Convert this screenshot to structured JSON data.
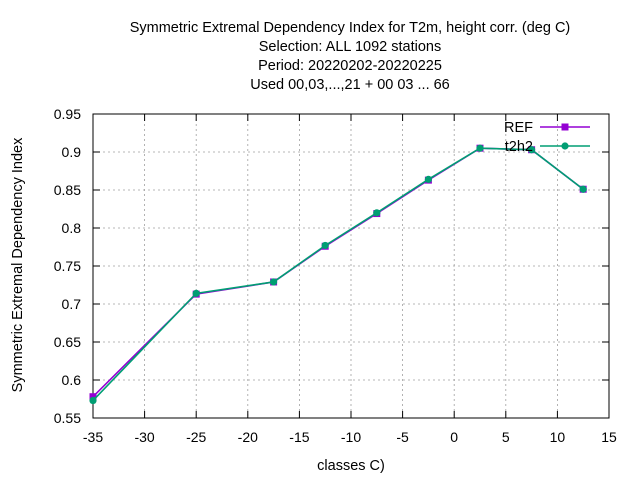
{
  "chart_data": {
    "type": "line",
    "title_lines": [
      "Symmetric Extremal Dependency Index  for T2m, height corr. (deg C)",
      "Selection: ALL   1092 stations",
      "Period: 20220202-20220225",
      "Used  00,03,...,21  + 00 03 ... 66"
    ],
    "xlabel": "classes C)",
    "ylabel": "Symmetric Extremal Dependency Index",
    "xlim": [
      -35,
      15
    ],
    "ylim": [
      0.55,
      0.95
    ],
    "xticks": [
      -35,
      -30,
      -25,
      -20,
      -15,
      -10,
      -5,
      0,
      5,
      10,
      15
    ],
    "xtick_labels": [
      "-35",
      "-30",
      "-25",
      "-20",
      "-15",
      "-10",
      "-5",
      "0",
      "5",
      "10",
      "15"
    ],
    "yticks": [
      0.55,
      0.6,
      0.65,
      0.7,
      0.75,
      0.8,
      0.85,
      0.9,
      0.95
    ],
    "ytick_labels": [
      "0.55",
      "0.6",
      "0.65",
      "0.7",
      "0.75",
      "0.8",
      "0.85",
      "0.9",
      "0.95"
    ],
    "grid": true,
    "legend_position": "top-right",
    "series": [
      {
        "name": "REF",
        "color": "#9400d3",
        "marker": "square",
        "x": [
          -35,
          -25,
          -17.5,
          -12.5,
          -7.5,
          -2.5,
          2.5,
          7.5,
          12.5
        ],
        "y": [
          0.578,
          0.713,
          0.729,
          0.776,
          0.819,
          0.863,
          0.905,
          0.903,
          0.851
        ]
      },
      {
        "name": "t2h2",
        "color": "#009e73",
        "marker": "circle",
        "x": [
          -35,
          -25,
          -17.5,
          -12.5,
          -7.5,
          -2.5,
          2.5,
          7.5,
          12.5
        ],
        "y": [
          0.573,
          0.714,
          0.729,
          0.777,
          0.82,
          0.864,
          0.905,
          0.903,
          0.851
        ]
      }
    ]
  }
}
